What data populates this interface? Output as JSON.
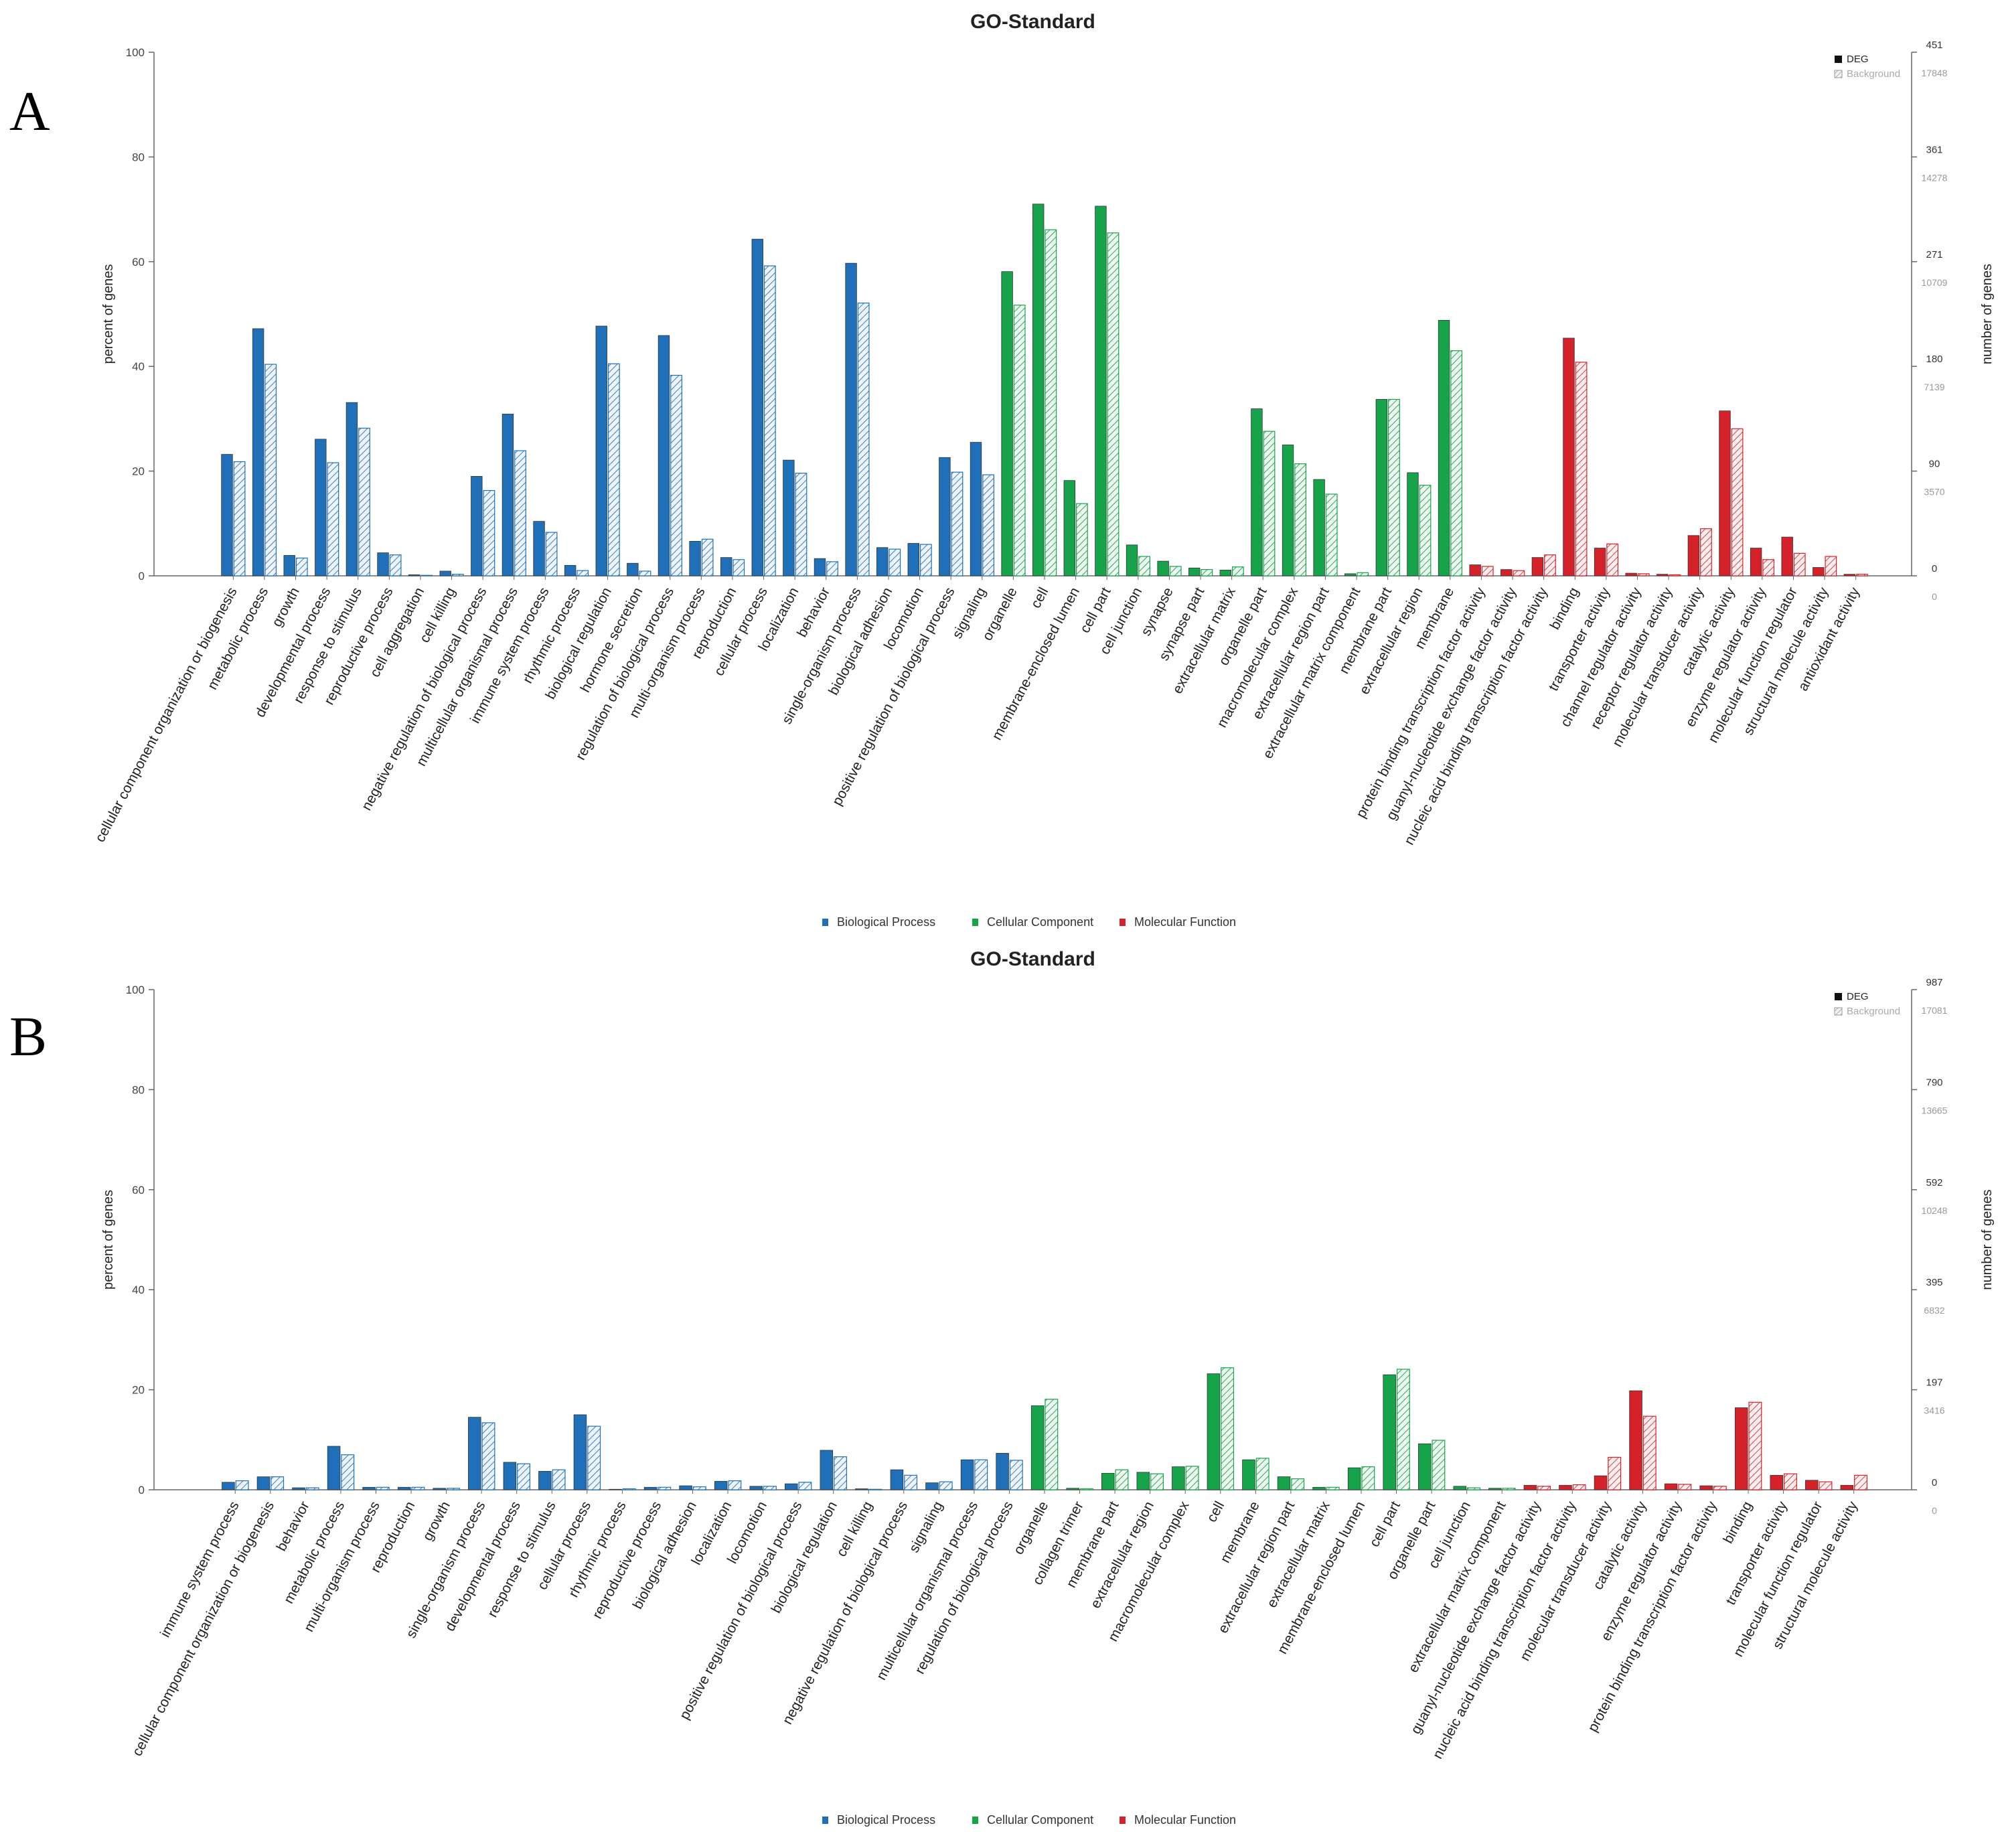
{
  "panel_labels": [
    "A",
    "B"
  ],
  "colors": {
    "biological_process": "#1f70b8",
    "cellular_component": "#16a34a",
    "molecular_function": "#d4212a",
    "background_hatch": "#9fb0c4",
    "axis": "#666666",
    "grid_label": "#444444",
    "right_deg_text": "#333333",
    "right_bg_text": "#999999"
  },
  "chart_data": [
    {
      "type": "bar",
      "panel": "A",
      "title": "GO-Standard",
      "ylabel": "percent of genes",
      "ylabel_right": "number of genes",
      "ylim": [
        0,
        100
      ],
      "yticks": [
        "0",
        "20",
        "40",
        "60",
        "80",
        "100"
      ],
      "right_ticks_deg": [
        "0",
        "90",
        "180",
        "271",
        "361",
        "451"
      ],
      "right_ticks_background": [
        "0",
        "3570",
        "7139",
        "10709",
        "14278",
        "17848"
      ],
      "legend_series": [
        "DEG",
        "Background"
      ],
      "legend_categories": [
        "Biological Process",
        "Cellular Component",
        "Molecular Function"
      ],
      "series_names": [
        "DEG",
        "Background"
      ],
      "categories": [
        {
          "name": "cellular component organization or biogenesis",
          "group": "BP",
          "deg": 23.2,
          "bg": 21.8
        },
        {
          "name": "metabolic process",
          "group": "BP",
          "deg": 47.2,
          "bg": 40.4
        },
        {
          "name": "growth",
          "group": "BP",
          "deg": 3.9,
          "bg": 3.4
        },
        {
          "name": "developmental process",
          "group": "BP",
          "deg": 26.1,
          "bg": 21.6
        },
        {
          "name": "response to stimulus",
          "group": "BP",
          "deg": 33.1,
          "bg": 28.2
        },
        {
          "name": "reproductive process",
          "group": "BP",
          "deg": 4.4,
          "bg": 4.0
        },
        {
          "name": "cell aggregation",
          "group": "BP",
          "deg": 0.2,
          "bg": 0.1
        },
        {
          "name": "cell killing",
          "group": "BP",
          "deg": 0.9,
          "bg": 0.3
        },
        {
          "name": "negative regulation of biological process",
          "group": "BP",
          "deg": 19.0,
          "bg": 16.3
        },
        {
          "name": "multicellular organismal process",
          "group": "BP",
          "deg": 30.9,
          "bg": 23.9
        },
        {
          "name": "immune system process",
          "group": "BP",
          "deg": 10.4,
          "bg": 8.3
        },
        {
          "name": "rhythmic process",
          "group": "BP",
          "deg": 2.0,
          "bg": 1.0
        },
        {
          "name": "biological regulation",
          "group": "BP",
          "deg": 47.7,
          "bg": 40.5
        },
        {
          "name": "hormone secretion",
          "group": "BP",
          "deg": 2.4,
          "bg": 0.9
        },
        {
          "name": "regulation of biological process",
          "group": "BP",
          "deg": 45.9,
          "bg": 38.3
        },
        {
          "name": "multi-organism process",
          "group": "BP",
          "deg": 6.6,
          "bg": 7.0
        },
        {
          "name": "reproduction",
          "group": "BP",
          "deg": 3.5,
          "bg": 3.1
        },
        {
          "name": "cellular process",
          "group": "BP",
          "deg": 64.3,
          "bg": 59.2
        },
        {
          "name": "localization",
          "group": "BP",
          "deg": 22.1,
          "bg": 19.6
        },
        {
          "name": "behavior",
          "group": "BP",
          "deg": 3.3,
          "bg": 2.7
        },
        {
          "name": "single-organism process",
          "group": "BP",
          "deg": 59.7,
          "bg": 52.1
        },
        {
          "name": "biological adhesion",
          "group": "BP",
          "deg": 5.4,
          "bg": 5.1
        },
        {
          "name": "locomotion",
          "group": "BP",
          "deg": 6.2,
          "bg": 6.0
        },
        {
          "name": "positive regulation of biological process",
          "group": "BP",
          "deg": 22.6,
          "bg": 19.8
        },
        {
          "name": "signaling",
          "group": "BP",
          "deg": 25.5,
          "bg": 19.3
        },
        {
          "name": "organelle",
          "group": "CC",
          "deg": 58.1,
          "bg": 51.7
        },
        {
          "name": "cell",
          "group": "CC",
          "deg": 71.0,
          "bg": 66.1
        },
        {
          "name": "membrane-enclosed lumen",
          "group": "CC",
          "deg": 18.2,
          "bg": 13.8
        },
        {
          "name": "cell part",
          "group": "CC",
          "deg": 70.6,
          "bg": 65.5
        },
        {
          "name": "cell junction",
          "group": "CC",
          "deg": 5.9,
          "bg": 3.7
        },
        {
          "name": "synapse",
          "group": "CC",
          "deg": 2.8,
          "bg": 1.8
        },
        {
          "name": "synapse part",
          "group": "CC",
          "deg": 1.5,
          "bg": 1.2
        },
        {
          "name": "extracellular matrix",
          "group": "CC",
          "deg": 1.1,
          "bg": 1.7
        },
        {
          "name": "organelle part",
          "group": "CC",
          "deg": 31.9,
          "bg": 27.6
        },
        {
          "name": "macromolecular complex",
          "group": "CC",
          "deg": 25.0,
          "bg": 21.4
        },
        {
          "name": "extracellular region part",
          "group": "CC",
          "deg": 18.4,
          "bg": 15.6
        },
        {
          "name": "extracellular matrix component",
          "group": "CC",
          "deg": 0.4,
          "bg": 0.6
        },
        {
          "name": "membrane part",
          "group": "CC",
          "deg": 33.7,
          "bg": 33.7
        },
        {
          "name": "extracellular region",
          "group": "CC",
          "deg": 19.7,
          "bg": 17.3
        },
        {
          "name": "membrane",
          "group": "CC",
          "deg": 48.8,
          "bg": 43.0
        },
        {
          "name": "protein binding transcription factor activity",
          "group": "MF",
          "deg": 2.1,
          "bg": 1.8
        },
        {
          "name": "guanyl-nucleotide exchange factor activity",
          "group": "MF",
          "deg": 1.2,
          "bg": 1.0
        },
        {
          "name": "nucleic acid binding transcription factor activity",
          "group": "MF",
          "deg": 3.5,
          "bg": 4.0
        },
        {
          "name": "binding",
          "group": "MF",
          "deg": 45.4,
          "bg": 40.8
        },
        {
          "name": "transporter activity",
          "group": "MF",
          "deg": 5.3,
          "bg": 6.1
        },
        {
          "name": "channel regulator activity",
          "group": "MF",
          "deg": 0.5,
          "bg": 0.4
        },
        {
          "name": "receptor regulator activity",
          "group": "MF",
          "deg": 0.3,
          "bg": 0.2
        },
        {
          "name": "molecular transducer activity",
          "group": "MF",
          "deg": 7.7,
          "bg": 9.0
        },
        {
          "name": "catalytic activity",
          "group": "MF",
          "deg": 31.5,
          "bg": 28.1
        },
        {
          "name": "enzyme regulator activity",
          "group": "MF",
          "deg": 5.3,
          "bg": 3.1
        },
        {
          "name": "molecular function regulator",
          "group": "MF",
          "deg": 7.4,
          "bg": 4.3
        },
        {
          "name": "structural molecule activity",
          "group": "MF",
          "deg": 1.6,
          "bg": 3.7
        },
        {
          "name": "antioxidant activity",
          "group": "MF",
          "deg": 0.3,
          "bg": 0.3
        }
      ]
    },
    {
      "type": "bar",
      "panel": "B",
      "title": "GO-Standard",
      "ylabel": "percent of genes",
      "ylabel_right": "number of genes",
      "ylim": [
        0,
        100
      ],
      "yticks": [
        "0",
        "20",
        "40",
        "60",
        "80",
        "100"
      ],
      "right_ticks_deg": [
        "0",
        "197",
        "395",
        "592",
        "790",
        "987"
      ],
      "right_ticks_background": [
        "0",
        "3416",
        "6832",
        "10248",
        "13665",
        "17081"
      ],
      "legend_series": [
        "DEG",
        "Background"
      ],
      "legend_categories": [
        "Biological Process",
        "Cellular Component",
        "Molecular Function"
      ],
      "series_names": [
        "DEG",
        "Background"
      ],
      "categories": [
        {
          "name": "immune system process",
          "group": "BP",
          "deg": 1.5,
          "bg": 1.8
        },
        {
          "name": "cellular component organization or biogenesis",
          "group": "BP",
          "deg": 2.6,
          "bg": 2.6
        },
        {
          "name": "behavior",
          "group": "BP",
          "deg": 0.4,
          "bg": 0.4
        },
        {
          "name": "metabolic process",
          "group": "BP",
          "deg": 8.7,
          "bg": 7.0
        },
        {
          "name": "multi-organism process",
          "group": "BP",
          "deg": 0.5,
          "bg": 0.5
        },
        {
          "name": "reproduction",
          "group": "BP",
          "deg": 0.5,
          "bg": 0.5
        },
        {
          "name": "growth",
          "group": "BP",
          "deg": 0.3,
          "bg": 0.3
        },
        {
          "name": "single-organism process",
          "group": "BP",
          "deg": 14.5,
          "bg": 13.4
        },
        {
          "name": "developmental process",
          "group": "BP",
          "deg": 5.5,
          "bg": 5.2
        },
        {
          "name": "response to stimulus",
          "group": "BP",
          "deg": 3.7,
          "bg": 4.0
        },
        {
          "name": "cellular process",
          "group": "BP",
          "deg": 15.0,
          "bg": 12.7
        },
        {
          "name": "rhythmic process",
          "group": "BP",
          "deg": 0.1,
          "bg": 0.2
        },
        {
          "name": "reproductive process",
          "group": "BP",
          "deg": 0.5,
          "bg": 0.5
        },
        {
          "name": "biological adhesion",
          "group": "BP",
          "deg": 0.8,
          "bg": 0.6
        },
        {
          "name": "localization",
          "group": "BP",
          "deg": 1.7,
          "bg": 1.8
        },
        {
          "name": "locomotion",
          "group": "BP",
          "deg": 0.7,
          "bg": 0.7
        },
        {
          "name": "positive regulation of biological process",
          "group": "BP",
          "deg": 1.2,
          "bg": 1.5
        },
        {
          "name": "biological regulation",
          "group": "BP",
          "deg": 7.9,
          "bg": 6.6
        },
        {
          "name": "cell killing",
          "group": "BP",
          "deg": 0.2,
          "bg": 0.1
        },
        {
          "name": "negative regulation of biological process",
          "group": "BP",
          "deg": 4.0,
          "bg": 2.9
        },
        {
          "name": "signaling",
          "group": "BP",
          "deg": 1.4,
          "bg": 1.6
        },
        {
          "name": "multicellular organismal process",
          "group": "BP",
          "deg": 6.0,
          "bg": 6.0
        },
        {
          "name": "regulation of biological process",
          "group": "BP",
          "deg": 7.3,
          "bg": 5.9
        },
        {
          "name": "organelle",
          "group": "CC",
          "deg": 16.8,
          "bg": 18.1
        },
        {
          "name": "collagen trimer",
          "group": "CC",
          "deg": 0.3,
          "bg": 0.2
        },
        {
          "name": "membrane part",
          "group": "CC",
          "deg": 3.3,
          "bg": 4.0
        },
        {
          "name": "extracellular region",
          "group": "CC",
          "deg": 3.5,
          "bg": 3.2
        },
        {
          "name": "macromolecular complex",
          "group": "CC",
          "deg": 4.6,
          "bg": 4.7
        },
        {
          "name": "cell",
          "group": "CC",
          "deg": 23.2,
          "bg": 24.4
        },
        {
          "name": "membrane",
          "group": "CC",
          "deg": 6.0,
          "bg": 6.3
        },
        {
          "name": "extracellular region part",
          "group": "CC",
          "deg": 2.6,
          "bg": 2.2
        },
        {
          "name": "extracellular matrix",
          "group": "CC",
          "deg": 0.5,
          "bg": 0.5
        },
        {
          "name": "membrane-enclosed lumen",
          "group": "CC",
          "deg": 4.4,
          "bg": 4.6
        },
        {
          "name": "cell part",
          "group": "CC",
          "deg": 23.0,
          "bg": 24.1
        },
        {
          "name": "organelle part",
          "group": "CC",
          "deg": 9.2,
          "bg": 9.9
        },
        {
          "name": "cell junction",
          "group": "CC",
          "deg": 0.7,
          "bg": 0.4
        },
        {
          "name": "extracellular matrix component",
          "group": "CC",
          "deg": 0.3,
          "bg": 0.3
        },
        {
          "name": "guanyl-nucleotide exchange factor activity",
          "group": "MF",
          "deg": 0.9,
          "bg": 0.7
        },
        {
          "name": "nucleic acid binding transcription factor activity",
          "group": "MF",
          "deg": 0.9,
          "bg": 1.0
        },
        {
          "name": "molecular transducer activity",
          "group": "MF",
          "deg": 2.8,
          "bg": 6.5
        },
        {
          "name": "catalytic activity",
          "group": "MF",
          "deg": 19.8,
          "bg": 14.7
        },
        {
          "name": "enzyme regulator activity",
          "group": "MF",
          "deg": 1.2,
          "bg": 1.1
        },
        {
          "name": "protein binding transcription factor activity",
          "group": "MF",
          "deg": 0.8,
          "bg": 0.7
        },
        {
          "name": "binding",
          "group": "MF",
          "deg": 16.4,
          "bg": 17.5
        },
        {
          "name": "transporter activity",
          "group": "MF",
          "deg": 2.9,
          "bg": 3.2
        },
        {
          "name": "molecular function regulator",
          "group": "MF",
          "deg": 1.9,
          "bg": 1.6
        },
        {
          "name": "structural molecule activity",
          "group": "MF",
          "deg": 0.9,
          "bg": 2.9
        }
      ]
    }
  ]
}
